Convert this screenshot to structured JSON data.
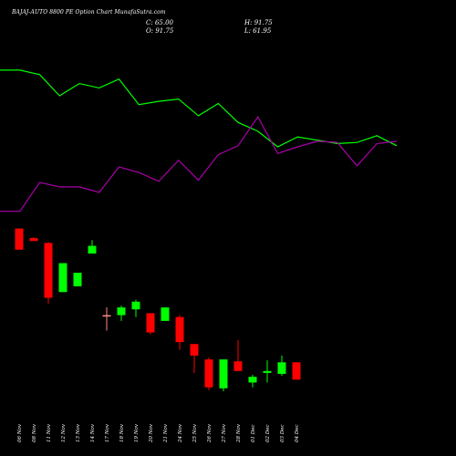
{
  "chart_data": {
    "type": "candlestick",
    "title": "BAJAJ-AUTO 8800 PE Option Chart MunafaSutra.com",
    "ohlc_summary": {
      "c_label": "C: 65.00",
      "o_label": "O: 91.75",
      "h_label": "H: 91.75",
      "l_label": "L: 61.95"
    },
    "colors": {
      "up": "#00ff00",
      "down": "#ff0000",
      "line_upper": "#00ff00",
      "line_lower": "#aa00aa",
      "neutral": "#ff8888"
    },
    "categories": [
      "06 Nov",
      "08 Nov",
      "11 Nov",
      "12 Nov",
      "13 Nov",
      "14 Nov",
      "17 Nov",
      "18 Nov",
      "19 Nov",
      "20 Nov",
      "21 Nov",
      "24 Nov",
      "25 Nov",
      "26 Nov",
      "27 Nov",
      "28 Nov",
      "01 Dec",
      "02 Dec",
      "03 Dec",
      "04 Dec"
    ],
    "candles": [
      {
        "o": 145.0,
        "h": 145.0,
        "l": 134.0,
        "c": 134.0
      },
      {
        "o": 140.0,
        "h": 140.5,
        "l": 138.5,
        "c": 138.5
      },
      {
        "o": 137.5,
        "h": 138.0,
        "l": 106.0,
        "c": 109.0
      },
      {
        "o": 112.0,
        "h": 127.0,
        "l": 112.0,
        "c": 127.0
      },
      {
        "o": 115.0,
        "h": 122.0,
        "l": 115.0,
        "c": 122.0
      },
      {
        "o": 132.0,
        "h": 139.0,
        "l": 132.0,
        "c": 136.0
      },
      {
        "o": 100.0,
        "h": 104.0,
        "l": 92.0,
        "c": 100.0
      },
      {
        "o": 100.0,
        "h": 105.0,
        "l": 97.0,
        "c": 104.0
      },
      {
        "o": 103.0,
        "h": 108.0,
        "l": 99.0,
        "c": 107.0
      },
      {
        "o": 101.0,
        "h": 101.0,
        "l": 90.0,
        "c": 91.0
      },
      {
        "o": 97.0,
        "h": 104.0,
        "l": 97.0,
        "c": 104.0
      },
      {
        "o": 99.0,
        "h": 100.0,
        "l": 82.0,
        "c": 86.0
      },
      {
        "o": 85.0,
        "h": 85.0,
        "l": 70.0,
        "c": 79.0
      },
      {
        "o": 77.0,
        "h": 78.0,
        "l": 61.0,
        "c": 62.5
      },
      {
        "o": 62.0,
        "h": 77.0,
        "l": 60.5,
        "c": 77.0
      },
      {
        "o": 76.0,
        "h": 87.0,
        "l": 71.0,
        "c": 71.0
      },
      {
        "o": 65.0,
        "h": 69.0,
        "l": 62.5,
        "c": 68.0
      },
      {
        "o": 70.0,
        "h": 76.5,
        "l": 65.0,
        "c": 71.0
      },
      {
        "o": 69.5,
        "h": 79.0,
        "l": 68.5,
        "c": 75.5
      },
      {
        "o": 75.5,
        "h": 75.5,
        "l": 66.5,
        "c": 66.5
      }
    ],
    "line_upper": [
      101.0,
      101.0,
      99.0,
      89.5,
      95.0,
      93.0,
      97.0,
      85.5,
      87.0,
      88.0,
      80.5,
      86.0,
      77.5,
      73.5,
      66.5,
      71.0,
      69.5,
      68.0,
      68.5,
      71.5,
      67.0
    ],
    "line_lower": [
      37.5,
      37.5,
      50.5,
      48.5,
      48.5,
      46.0,
      57.5,
      55.0,
      51.0,
      60.5,
      51.5,
      63.0,
      67.0,
      80.0,
      63.5,
      66.5,
      69.0,
      68.5,
      58.0,
      68.0,
      69.0
    ]
  }
}
